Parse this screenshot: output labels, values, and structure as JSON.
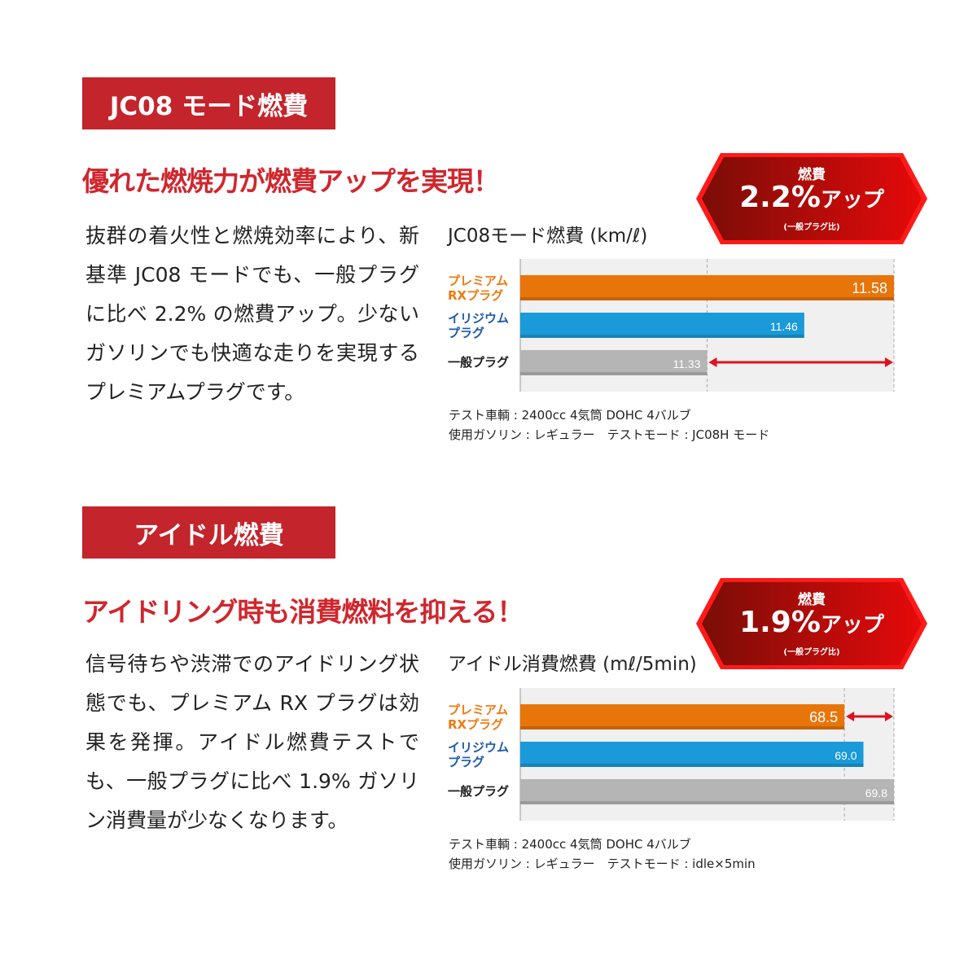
{
  "sections": [
    {
      "tag": "JC08 モード燃費",
      "headline": "優れた燃焼力が燃費アップを実現！",
      "body": "抜群の着火性と燃焼効率により、新基準 JC08 モードでも、一般プラグに比べ 2.2% の燃費アップ。少ないガソリンでも快適な走りを実現するプレミアムプラグです。",
      "badge": {
        "top": "燃費",
        "value": "2.2%",
        "suffix": "アップ",
        "note": "(一般プラグ比)"
      },
      "notes": [
        "テスト車輌 : 2400cc 4気筒 DOHC 4バルブ",
        "使用ガソリン : レギュラー　テストモード : JC08H モード"
      ]
    },
    {
      "tag": "アイドル燃費",
      "headline": "アイドリング時も消費燃料を抑える！",
      "body": "信号待ちや渋滞でのアイドリング状態でも、プレミアム RX プラグは効果を発揮。アイドル燃費テストでも、一般プラグに比べ 1.9% ガソリン消費量が少なくなります。",
      "badge": {
        "top": "燃費",
        "value": "1.9%",
        "suffix": "アップ",
        "note": "(一般プラグ比)"
      },
      "notes": [
        "テスト車輌 : 2400cc 4気筒 DOHC 4バルブ",
        "使用ガソリン : レギュラー　テストモード : idle×5min"
      ]
    }
  ],
  "chart_data": [
    {
      "type": "bar",
      "orientation": "horizontal",
      "title": "JC08モード燃費 (km/ℓ)",
      "categories": [
        "プレミアム\nRXプラグ",
        "イリジウム\nプラグ",
        "一般プラグ"
      ],
      "values": [
        11.58,
        11.46,
        11.33
      ],
      "value_labels": [
        "11.58",
        "11.46",
        "11.33"
      ],
      "xlim": [
        11.08,
        11.58
      ],
      "colors": [
        "#e8750a",
        "#1a9ad8",
        "#b5b5b5"
      ],
      "label_colors": [
        "#ee7a10",
        "#1e5aa8",
        "#222222"
      ],
      "arrow": {
        "from": 11.33,
        "to": 11.58,
        "row": 2,
        "color": "#e0101e"
      },
      "grid": false
    },
    {
      "type": "bar",
      "orientation": "horizontal",
      "title": "アイドル消費燃費 (mℓ/5min)",
      "categories": [
        "プレミアム\nRXプラグ",
        "イリジウム\nプラグ",
        "一般プラグ"
      ],
      "values": [
        68.5,
        69.0,
        69.8
      ],
      "value_labels": [
        "68.5",
        "69.0",
        "69.8"
      ],
      "xlim": [
        60,
        69.8
      ],
      "colors": [
        "#e8750a",
        "#1a9ad8",
        "#b5b5b5"
      ],
      "label_colors": [
        "#ee7a10",
        "#1e5aa8",
        "#222222"
      ],
      "arrow": {
        "from": 68.5,
        "to": 69.8,
        "row": 0,
        "color": "#e0101e"
      },
      "grid": false
    }
  ]
}
